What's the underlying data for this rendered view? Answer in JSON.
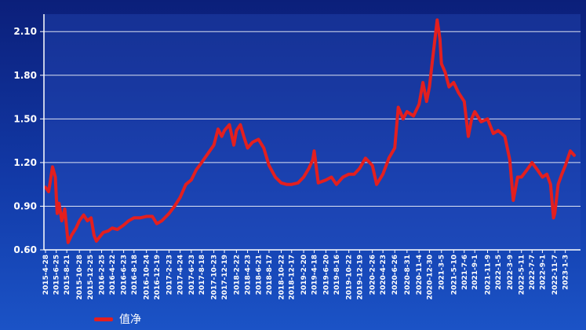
{
  "colors": {
    "line": "#e31f1f",
    "axis_text": "#ffffff",
    "grid": "#ffffff",
    "plot_background": "#2c4fbf"
  },
  "legend": {
    "label": "值净",
    "icon": "line-swatch-icon"
  },
  "chart_data": {
    "type": "line",
    "title": "",
    "xlabel": "",
    "ylabel": "",
    "ylim": [
      0.6,
      2.22
    ],
    "yticks": [
      "0.60",
      "0.90",
      "1.20",
      "1.50",
      "1.80",
      "2.10"
    ],
    "xticks": [
      "2015-4-28",
      "2015-6-25",
      "2015-8-21",
      "2015-10-28",
      "2015-12-25",
      "2016-2-25",
      "2016-4-22",
      "2016-6-23",
      "2016-8-18",
      "2016-10-24",
      "2016-12-19",
      "2017-2-23",
      "2017-4-24",
      "2017-6-23",
      "2017-8-18",
      "2017-10-23",
      "2017-12-19",
      "2018-2-22",
      "2018-4-23",
      "2018-6-21",
      "2018-8-17",
      "2018-10-22",
      "2018-12-17",
      "2019-2-20",
      "2019-4-18",
      "2019-6-20",
      "2019-8-16",
      "2019-10-22",
      "2019-12-19",
      "2020-2-26",
      "2020-4-23",
      "2020-6-26",
      "2020-8-31",
      "2020-11-4",
      "2020-12-30",
      "2021-3-5",
      "2021-5-10",
      "2021-7-6",
      "2021-9-1",
      "2021-11-9",
      "2022-1-5",
      "2022-3-9",
      "2022-5-11",
      "2022-7-7",
      "2022-9-1",
      "2022-11-7",
      "2023-1-3"
    ],
    "series": [
      {
        "name": "值净",
        "points": [
          [
            "2015-4-28",
            1.03
          ],
          [
            "2015-5-15",
            1.0
          ],
          [
            "2015-6-5",
            1.17
          ],
          [
            "2015-6-20",
            1.1
          ],
          [
            "2015-6-30",
            0.85
          ],
          [
            "2015-7-10",
            0.92
          ],
          [
            "2015-7-25",
            0.8
          ],
          [
            "2015-8-10",
            0.88
          ],
          [
            "2015-8-28",
            0.65
          ],
          [
            "2015-9-15",
            0.7
          ],
          [
            "2015-10-10",
            0.75
          ],
          [
            "2015-10-28",
            0.8
          ],
          [
            "2015-11-20",
            0.84
          ],
          [
            "2015-12-10",
            0.8
          ],
          [
            "2015-12-30",
            0.82
          ],
          [
            "2016-1-15",
            0.7
          ],
          [
            "2016-1-28",
            0.66
          ],
          [
            "2016-2-15",
            0.69
          ],
          [
            "2016-3-5",
            0.72
          ],
          [
            "2016-4-1",
            0.73
          ],
          [
            "2016-4-22",
            0.75
          ],
          [
            "2016-5-20",
            0.74
          ],
          [
            "2016-6-23",
            0.77
          ],
          [
            "2016-7-20",
            0.8
          ],
          [
            "2016-8-18",
            0.82
          ],
          [
            "2016-9-20",
            0.82
          ],
          [
            "2016-10-24",
            0.83
          ],
          [
            "2016-11-25",
            0.83
          ],
          [
            "2016-12-19",
            0.78
          ],
          [
            "2017-1-15",
            0.8
          ],
          [
            "2017-2-23",
            0.85
          ],
          [
            "2017-3-25",
            0.9
          ],
          [
            "2017-4-24",
            0.96
          ],
          [
            "2017-5-25",
            1.05
          ],
          [
            "2017-6-23",
            1.08
          ],
          [
            "2017-7-20",
            1.15
          ],
          [
            "2017-8-18",
            1.2
          ],
          [
            "2017-9-20",
            1.26
          ],
          [
            "2017-10-23",
            1.32
          ],
          [
            "2017-11-15",
            1.43
          ],
          [
            "2017-12-5",
            1.38
          ],
          [
            "2017-12-19",
            1.42
          ],
          [
            "2018-1-15",
            1.46
          ],
          [
            "2018-2-8",
            1.32
          ],
          [
            "2018-2-22",
            1.42
          ],
          [
            "2018-3-15",
            1.46
          ],
          [
            "2018-4-5",
            1.37
          ],
          [
            "2018-4-23",
            1.3
          ],
          [
            "2018-5-20",
            1.34
          ],
          [
            "2018-6-21",
            1.36
          ],
          [
            "2018-7-20",
            1.3
          ],
          [
            "2018-8-17",
            1.18
          ],
          [
            "2018-9-20",
            1.1
          ],
          [
            "2018-10-22",
            1.06
          ],
          [
            "2018-11-20",
            1.05
          ],
          [
            "2018-12-17",
            1.05
          ],
          [
            "2019-1-20",
            1.06
          ],
          [
            "2019-2-20",
            1.1
          ],
          [
            "2019-3-20",
            1.16
          ],
          [
            "2019-4-10",
            1.22
          ],
          [
            "2019-4-18",
            1.28
          ],
          [
            "2019-5-10",
            1.06
          ],
          [
            "2019-6-20",
            1.08
          ],
          [
            "2019-7-20",
            1.1
          ],
          [
            "2019-8-16",
            1.05
          ],
          [
            "2019-9-20",
            1.1
          ],
          [
            "2019-10-22",
            1.12
          ],
          [
            "2019-11-20",
            1.12
          ],
          [
            "2019-12-19",
            1.16
          ],
          [
            "2020-1-20",
            1.23
          ],
          [
            "2020-2-26",
            1.18
          ],
          [
            "2020-3-20",
            1.05
          ],
          [
            "2020-4-23",
            1.12
          ],
          [
            "2020-5-25",
            1.23
          ],
          [
            "2020-6-26",
            1.3
          ],
          [
            "2020-7-15",
            1.58
          ],
          [
            "2020-8-10",
            1.5
          ],
          [
            "2020-8-31",
            1.55
          ],
          [
            "2020-10-5",
            1.52
          ],
          [
            "2020-11-4",
            1.6
          ],
          [
            "2020-11-25",
            1.75
          ],
          [
            "2020-12-15",
            1.62
          ],
          [
            "2020-12-30",
            1.72
          ],
          [
            "2021-1-20",
            1.95
          ],
          [
            "2021-2-10",
            2.18
          ],
          [
            "2021-2-25",
            2.05
          ],
          [
            "2021-3-5",
            1.88
          ],
          [
            "2021-3-25",
            1.82
          ],
          [
            "2021-4-15",
            1.72
          ],
          [
            "2021-5-10",
            1.75
          ],
          [
            "2021-6-5",
            1.68
          ],
          [
            "2021-7-6",
            1.62
          ],
          [
            "2021-7-28",
            1.38
          ],
          [
            "2021-8-15",
            1.5
          ],
          [
            "2021-9-1",
            1.55
          ],
          [
            "2021-10-5",
            1.48
          ],
          [
            "2021-11-9",
            1.5
          ],
          [
            "2021-12-10",
            1.4
          ],
          [
            "2022-1-5",
            1.42
          ],
          [
            "2022-2-10",
            1.38
          ],
          [
            "2022-3-9",
            1.22
          ],
          [
            "2022-3-28",
            0.94
          ],
          [
            "2022-4-20",
            1.1
          ],
          [
            "2022-5-11",
            1.1
          ],
          [
            "2022-6-10",
            1.15
          ],
          [
            "2022-7-7",
            1.2
          ],
          [
            "2022-8-5",
            1.15
          ],
          [
            "2022-9-1",
            1.1
          ],
          [
            "2022-9-25",
            1.12
          ],
          [
            "2022-10-15",
            1.05
          ],
          [
            "2022-10-31",
            0.82
          ],
          [
            "2022-11-7",
            0.85
          ],
          [
            "2022-11-25",
            1.05
          ],
          [
            "2022-12-15",
            1.12
          ],
          [
            "2023-1-3",
            1.18
          ],
          [
            "2023-1-30",
            1.28
          ],
          [
            "2023-2-20",
            1.25
          ]
        ]
      }
    ]
  }
}
